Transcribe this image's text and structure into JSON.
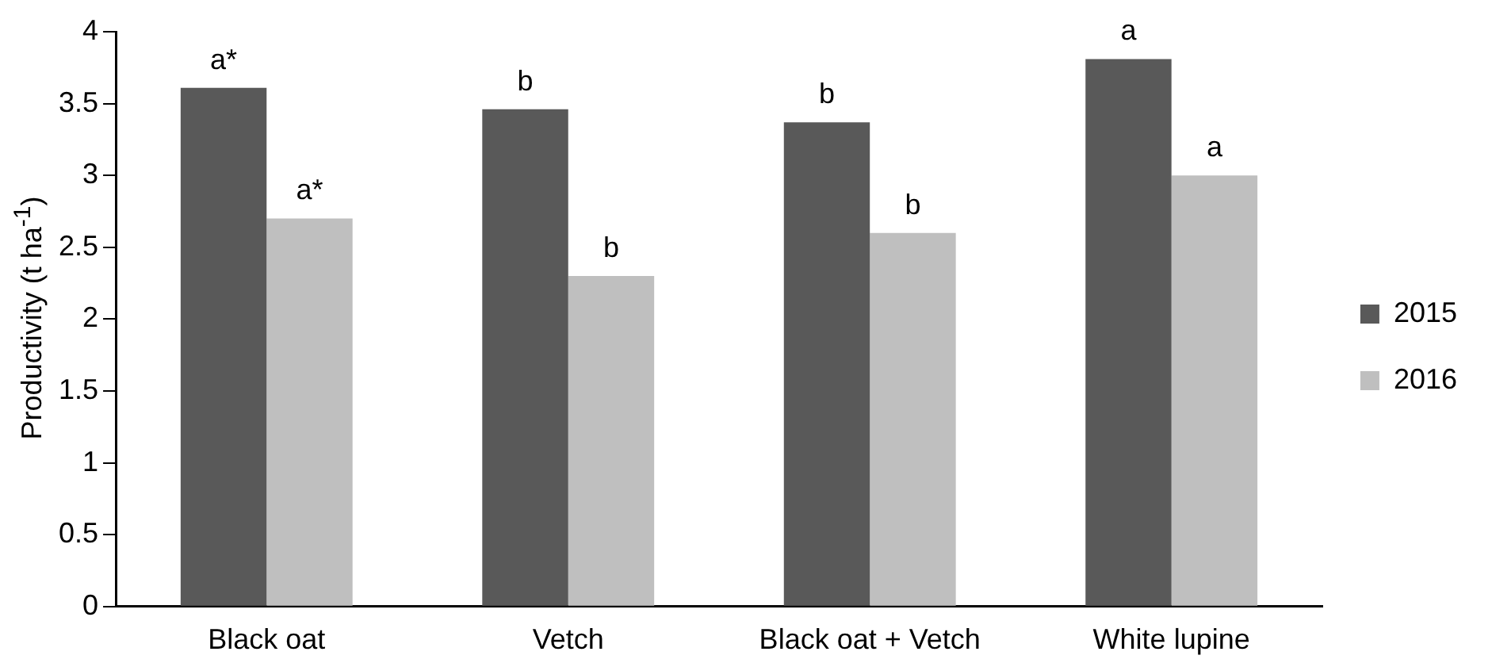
{
  "chart_data": {
    "type": "bar",
    "ylabel": "Productivity (t ha$^{-1}$)",
    "categories": [
      "Black oat",
      "Vetch",
      "Black oat + Vetch",
      "White lupine"
    ],
    "series": [
      {
        "name": "2015",
        "color": "#595959",
        "values": [
          3.61,
          3.46,
          3.37,
          3.81
        ]
      },
      {
        "name": "2016",
        "color": "#bfbfbf",
        "values": [
          2.7,
          2.3,
          2.6,
          3.0
        ]
      }
    ],
    "ylim": [
      0,
      4
    ],
    "yticks": [
      0,
      0.5,
      1,
      1.5,
      2,
      2.5,
      3,
      3.5,
      4
    ],
    "grid": false,
    "legend": "right",
    "annotations": [
      {
        "text": "a*",
        "x": "Black oat",
        "y": 3.61
      },
      {
        "text": "a*",
        "x": "Black oat",
        "y": 2.7
      },
      {
        "text": "b",
        "x": "Vetch",
        "y": 3.46
      },
      {
        "text": "b",
        "x": "Vetch",
        "y": 2.3
      },
      {
        "text": "b",
        "x": "Black oat + Vetch",
        "y": 3.37
      },
      {
        "text": "b",
        "x": "Black oat + Vetch",
        "y": 2.6
      },
      {
        "text": "a",
        "x": "White lupine",
        "y": 3.81
      },
      {
        "text": "a",
        "x": "White lupine",
        "y": 3.0
      }
    ]
  }
}
